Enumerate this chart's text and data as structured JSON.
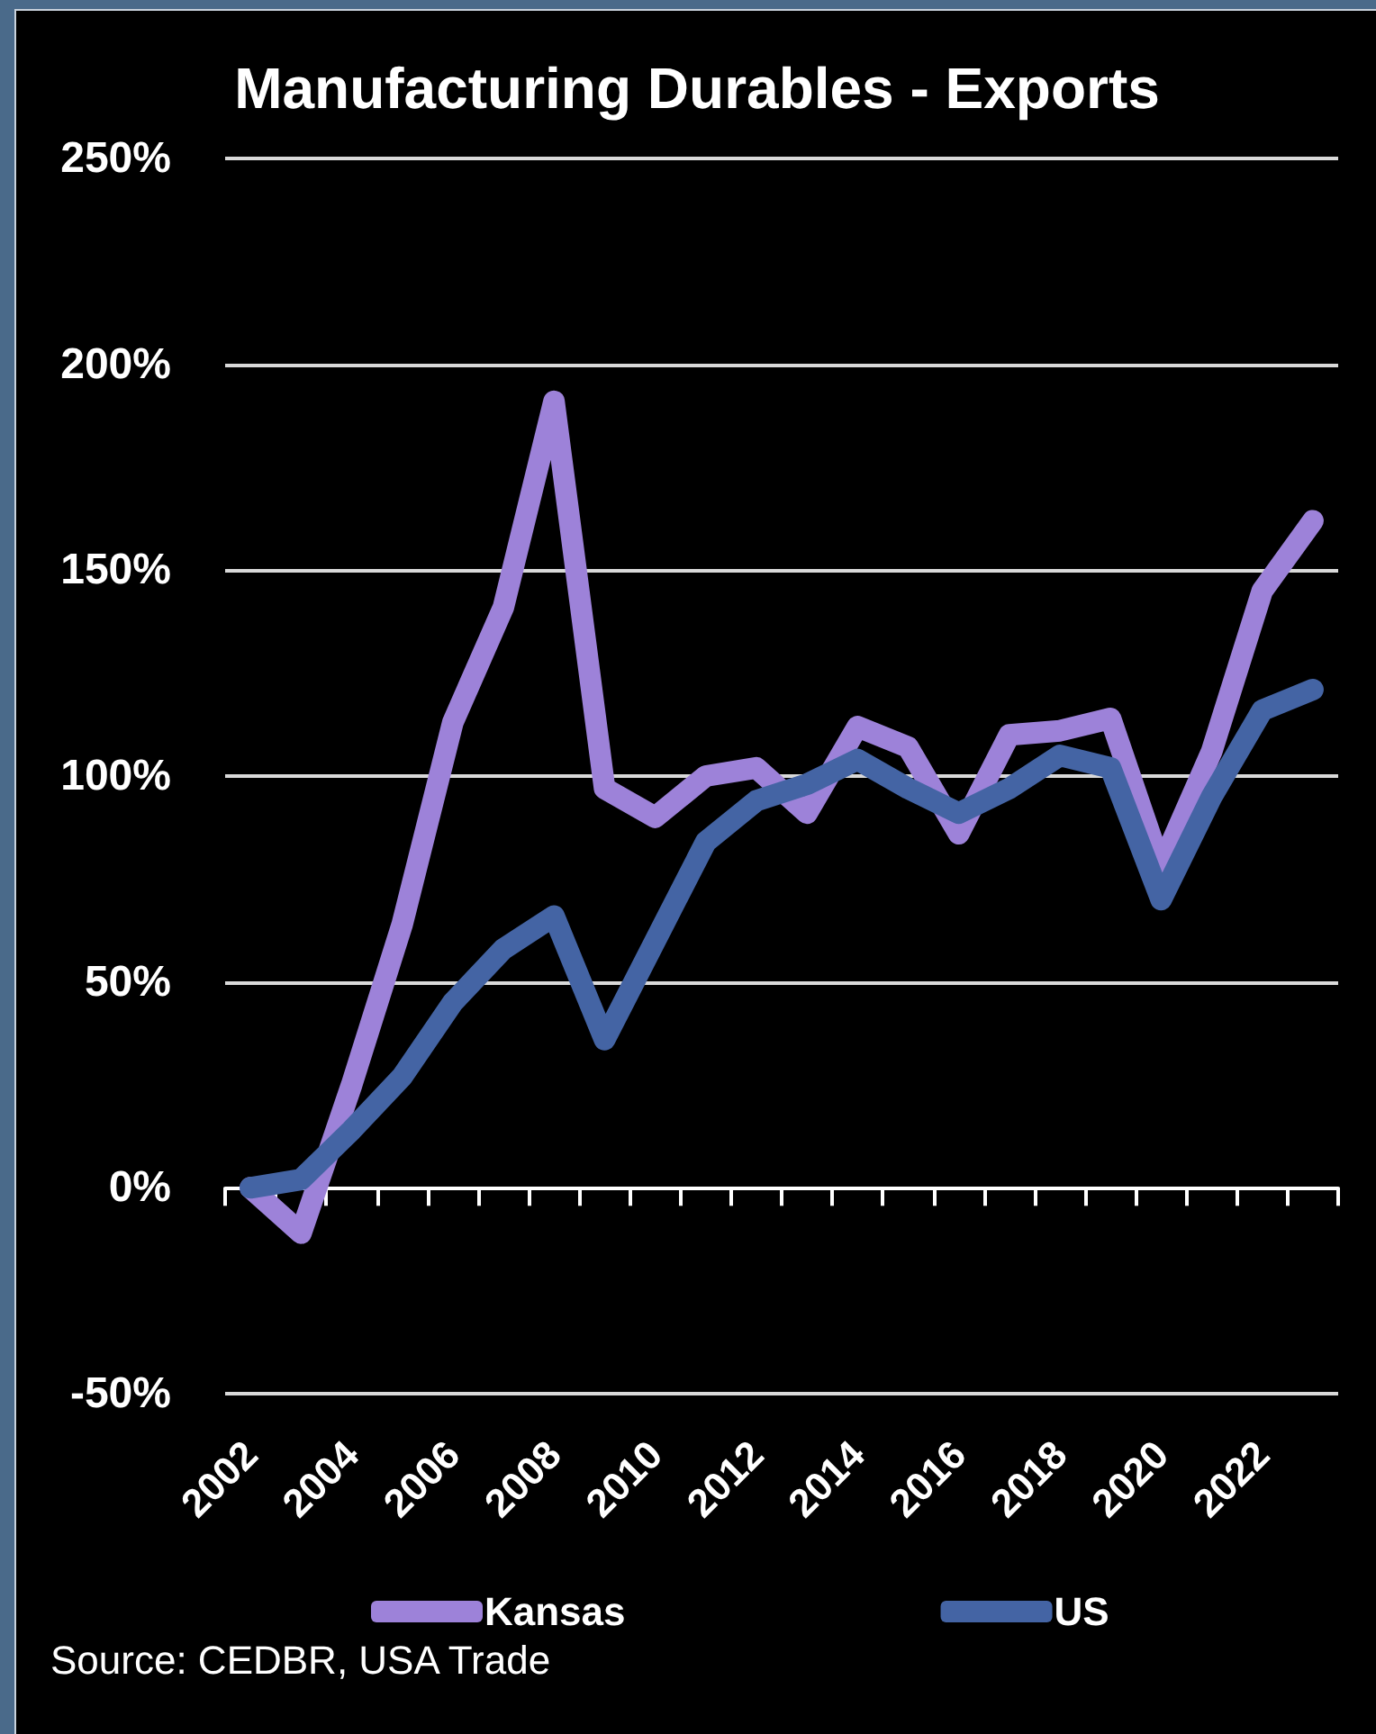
{
  "chart_data": {
    "type": "line",
    "title": "Manufacturing Durables - Exports",
    "categories": [
      "2002",
      null,
      "2004",
      null,
      "2006",
      null,
      "2008",
      null,
      "2010",
      null,
      "2012",
      null,
      "2014",
      null,
      "2016",
      null,
      "2018",
      null,
      "2020",
      null,
      "2022",
      null
    ],
    "series": [
      {
        "name": "Kansas",
        "color": "#9d82d9",
        "values": [
          0,
          -11,
          25,
          64,
          113,
          141,
          191,
          97,
          90,
          100,
          102,
          91,
          112,
          107,
          86,
          110,
          111,
          114,
          78,
          106,
          145,
          162
        ]
      },
      {
        "name": "US",
        "color": "#4464a4",
        "values": [
          0,
          2,
          14,
          27,
          45,
          58,
          66,
          36,
          60,
          84,
          94,
          98,
          104,
          97,
          91,
          97,
          105,
          102,
          70,
          95,
          116,
          121
        ]
      }
    ],
    "ylim": [
      -50,
      250
    ],
    "yticks": [
      {
        "value": -50,
        "label": "-50%"
      },
      {
        "value": 0,
        "label": "0%"
      },
      {
        "value": 50,
        "label": "50%"
      },
      {
        "value": 100,
        "label": "100%"
      },
      {
        "value": 150,
        "label": "150%"
      },
      {
        "value": 200,
        "label": "200%"
      },
      {
        "value": 250,
        "label": "250%"
      }
    ],
    "grid": "y",
    "legend": "bottom",
    "marker": "none",
    "line_style": "solid",
    "annotations": [
      "Source: CEDBR, USA Trade"
    ]
  }
}
